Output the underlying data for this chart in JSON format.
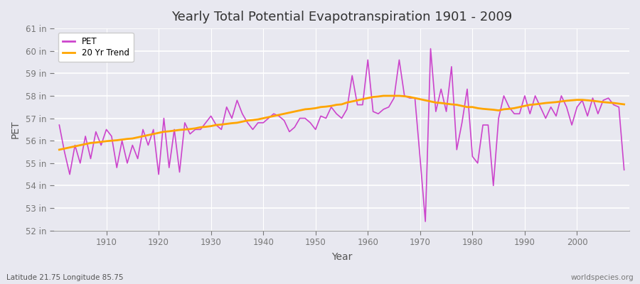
{
  "title": "Yearly Total Potential Evapotranspiration 1901 - 2009",
  "xlabel": "Year",
  "ylabel": "PET",
  "pet_color": "#CC44CC",
  "trend_color": "#FFA500",
  "bg_color": "#E8E8F0",
  "grid_color": "#FFFFFF",
  "years": [
    1901,
    1902,
    1903,
    1904,
    1905,
    1906,
    1907,
    1908,
    1909,
    1910,
    1911,
    1912,
    1913,
    1914,
    1915,
    1916,
    1917,
    1918,
    1919,
    1920,
    1921,
    1922,
    1923,
    1924,
    1925,
    1926,
    1927,
    1928,
    1929,
    1930,
    1931,
    1932,
    1933,
    1934,
    1935,
    1936,
    1937,
    1938,
    1939,
    1940,
    1941,
    1942,
    1943,
    1944,
    1945,
    1946,
    1947,
    1948,
    1949,
    1950,
    1951,
    1952,
    1953,
    1954,
    1955,
    1956,
    1957,
    1958,
    1959,
    1960,
    1961,
    1962,
    1963,
    1964,
    1965,
    1966,
    1967,
    1968,
    1969,
    1970,
    1971,
    1972,
    1973,
    1974,
    1975,
    1976,
    1977,
    1978,
    1979,
    1980,
    1981,
    1982,
    1983,
    1984,
    1985,
    1986,
    1987,
    1988,
    1989,
    1990,
    1991,
    1992,
    1993,
    1994,
    1995,
    1996,
    1997,
    1998,
    1999,
    2000,
    2001,
    2002,
    2003,
    2004,
    2005,
    2006,
    2007,
    2008,
    2009
  ],
  "pet_values": [
    56.7,
    55.5,
    54.5,
    55.8,
    55.0,
    56.2,
    55.2,
    56.4,
    55.8,
    56.5,
    56.2,
    54.8,
    56.0,
    55.0,
    55.8,
    55.2,
    56.5,
    55.8,
    56.5,
    54.5,
    57.0,
    54.8,
    56.5,
    54.6,
    56.8,
    56.3,
    56.5,
    56.5,
    56.8,
    57.1,
    56.7,
    56.5,
    57.5,
    57.0,
    57.8,
    57.2,
    56.8,
    56.5,
    56.8,
    56.8,
    57.0,
    57.2,
    57.1,
    56.9,
    56.4,
    56.6,
    57.0,
    57.0,
    56.8,
    56.5,
    57.1,
    57.0,
    57.5,
    57.2,
    57.0,
    57.4,
    58.9,
    57.6,
    57.6,
    59.6,
    57.3,
    57.2,
    57.4,
    57.5,
    57.9,
    59.6,
    58.0,
    57.9,
    57.9,
    55.2,
    52.4,
    60.1,
    57.3,
    58.3,
    57.3,
    59.3,
    55.6,
    56.8,
    58.3,
    55.3,
    55.0,
    56.7,
    56.7,
    54.0,
    57.0,
    58.0,
    57.5,
    57.2,
    57.2,
    58.0,
    57.2,
    58.0,
    57.5,
    57.0,
    57.5,
    57.1,
    58.0,
    57.5,
    56.7,
    57.5,
    57.8,
    57.1,
    57.9,
    57.2,
    57.8,
    57.9,
    57.6,
    57.5,
    54.7
  ],
  "trend_values": [
    55.6,
    55.65,
    55.7,
    55.75,
    55.8,
    55.85,
    55.9,
    55.92,
    55.95,
    55.98,
    56.0,
    56.02,
    56.05,
    56.08,
    56.1,
    56.15,
    56.2,
    56.25,
    56.3,
    56.35,
    56.4,
    56.42,
    56.45,
    56.48,
    56.5,
    56.52,
    56.55,
    56.6,
    56.62,
    56.65,
    56.7,
    56.72,
    56.75,
    56.78,
    56.8,
    56.85,
    56.9,
    56.92,
    56.95,
    57.0,
    57.05,
    57.1,
    57.15,
    57.2,
    57.25,
    57.3,
    57.35,
    57.4,
    57.42,
    57.45,
    57.5,
    57.52,
    57.55,
    57.6,
    57.62,
    57.7,
    57.75,
    57.8,
    57.85,
    57.9,
    57.95,
    57.97,
    58.0,
    58.0,
    58.0,
    58.0,
    57.98,
    57.95,
    57.9,
    57.85,
    57.8,
    57.75,
    57.7,
    57.68,
    57.65,
    57.62,
    57.6,
    57.55,
    57.5,
    57.5,
    57.45,
    57.42,
    57.4,
    57.38,
    57.35,
    57.4,
    57.42,
    57.45,
    57.5,
    57.55,
    57.6,
    57.62,
    57.65,
    57.68,
    57.7,
    57.72,
    57.75,
    57.78,
    57.8,
    57.82,
    57.82,
    57.8,
    57.78,
    57.75,
    57.72,
    57.7,
    57.68,
    57.65,
    57.62
  ],
  "ylim": [
    52,
    61
  ],
  "yticks": [
    52,
    53,
    54,
    55,
    56,
    57,
    58,
    59,
    60,
    61
  ],
  "ytick_labels": [
    "52 in",
    "53 in",
    "54 in",
    "55 in",
    "56 in",
    "57 in",
    "58 in",
    "59 in",
    "60 in",
    "61 in"
  ],
  "xlim": [
    1900,
    2010
  ],
  "xticks": [
    1910,
    1920,
    1930,
    1940,
    1950,
    1960,
    1970,
    1980,
    1990,
    2000
  ],
  "footnote_left": "Latitude 21.75 Longitude 85.75",
  "footnote_right": "worldspecies.org",
  "legend_labels": [
    "PET",
    "20 Yr Trend"
  ]
}
